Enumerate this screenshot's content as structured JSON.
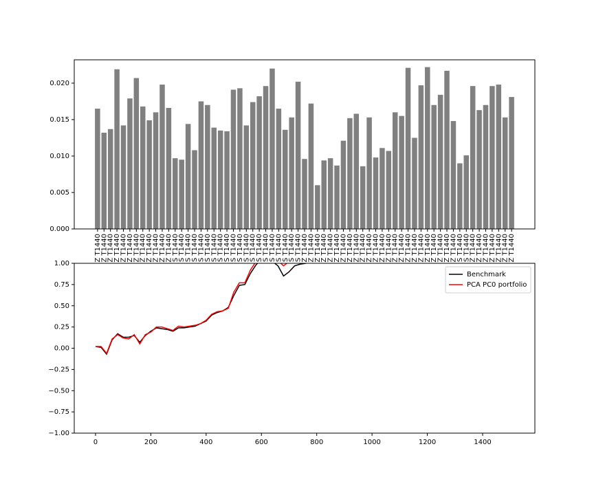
{
  "chart_data": [
    {
      "type": "bar",
      "categories": [
        "Z T1440",
        "Z T1440",
        "Z T1440",
        "Z T1440",
        "Z T1440",
        "Z T1440",
        "Z T1440",
        "Z T1440",
        "Z T1440",
        "Z T1440",
        "Z T1440",
        "Z T1440",
        "S T1440",
        "S T1440",
        "S T1440",
        "S T1440",
        "S T1440",
        "S T1440",
        "S T1440",
        "S T1440",
        "S T1440",
        "S T1440",
        "S T1440",
        "S T1440",
        "S T1440",
        "S T1440",
        "S T1440",
        "S T1440",
        "S T1440",
        "S T1440",
        "S T1440",
        "S T1440",
        "Z T1440",
        "Z T1440",
        "Z T1440",
        "Z T1440",
        "Z T1440",
        "Z T1440",
        "Z T1440",
        "Z T1440",
        "Z T1440",
        "Z T1440",
        "Z T1440",
        "Z T1440",
        "Z T1440",
        "Z T1440",
        "Z T1440",
        "Z T1440",
        "Z T1440",
        "Z T1440",
        "Z T1440",
        "Z T1440",
        "Z T1440",
        "Z T1440",
        "Z T1440",
        "Z T1440",
        "S T1440",
        "S T1440",
        "Z T1440",
        "Z T1440",
        "Z T1440",
        "Z T1440",
        "Z T1440",
        "Z T1440",
        "Z T1440"
      ],
      "values": [
        0.0165,
        0.0132,
        0.0137,
        0.0219,
        0.0142,
        0.0179,
        0.0207,
        0.0168,
        0.0149,
        0.016,
        0.0198,
        0.0166,
        0.0097,
        0.0095,
        0.0144,
        0.0108,
        0.0175,
        0.017,
        0.0139,
        0.0135,
        0.0134,
        0.0191,
        0.0193,
        0.0142,
        0.0174,
        0.0182,
        0.0196,
        0.022,
        0.0165,
        0.0136,
        0.0153,
        0.0202,
        0.0096,
        0.0172,
        0.006,
        0.0094,
        0.0097,
        0.0087,
        0.0121,
        0.0152,
        0.0158,
        0.0086,
        0.0153,
        0.0098,
        0.0111,
        0.0107,
        0.016,
        0.0155,
        0.0221,
        0.0125,
        0.0197,
        0.0222,
        0.017,
        0.0184,
        0.0217,
        0.0148,
        0.009,
        0.0101,
        0.0196,
        0.0163,
        0.017,
        0.0196,
        0.0198,
        0.0153,
        0.0181
      ],
      "color": "#808080",
      "ylim": [
        0,
        0.0232
      ],
      "yticks": [
        {
          "value": 0,
          "label": "0.000"
        },
        {
          "value": 0.005,
          "label": "0.005"
        },
        {
          "value": 0.01,
          "label": "0.010"
        },
        {
          "value": 0.015,
          "label": "0.015"
        },
        {
          "value": 0.02,
          "label": "0.020"
        }
      ]
    },
    {
      "type": "line",
      "x": [
        0,
        20,
        40,
        60,
        80,
        100,
        120,
        140,
        160,
        180,
        200,
        220,
        240,
        260,
        280,
        300,
        320,
        340,
        360,
        380,
        400,
        420,
        440,
        460,
        480,
        500,
        520,
        540,
        560,
        580,
        600,
        620,
        640,
        660,
        680,
        700,
        720,
        740,
        760,
        780
      ],
      "series": [
        {
          "name": "Benchmark",
          "color": "#000000",
          "values": [
            0.02,
            0.01,
            -0.07,
            0.1,
            0.17,
            0.13,
            0.13,
            0.15,
            0.07,
            0.15,
            0.2,
            0.24,
            0.23,
            0.22,
            0.2,
            0.24,
            0.24,
            0.25,
            0.26,
            0.29,
            0.32,
            0.39,
            0.42,
            0.44,
            0.48,
            0.62,
            0.74,
            0.75,
            0.88,
            0.98,
            1.05,
            1.08,
            1.02,
            0.97,
            0.85,
            0.9,
            0.97,
            0.99,
            1.0,
            1.02
          ]
        },
        {
          "name": "PCA PC0 portfolio",
          "color": "#ff0000",
          "values": [
            0.02,
            0.02,
            -0.06,
            0.11,
            0.16,
            0.12,
            0.11,
            0.16,
            0.05,
            0.16,
            0.19,
            0.25,
            0.25,
            0.23,
            0.21,
            0.26,
            0.25,
            0.26,
            0.27,
            0.29,
            0.33,
            0.4,
            0.43,
            0.44,
            0.47,
            0.66,
            0.77,
            0.77,
            0.92,
            1.02,
            1.08,
            1.1,
            1.05,
            1.03,
            0.97,
            1.02,
            1.05,
            1.08,
            1.1,
            1.12
          ]
        }
      ],
      "xlim": [
        -77,
        1589
      ],
      "xticks": [
        0,
        200,
        400,
        600,
        800,
        1000,
        1200,
        1400
      ],
      "ylim": [
        -1,
        1
      ],
      "yticks": [
        {
          "value": -1,
          "label": "−1.00"
        },
        {
          "value": -0.75,
          "label": "−0.75"
        },
        {
          "value": -0.5,
          "label": "−0.50"
        },
        {
          "value": -0.25,
          "label": "−0.25"
        },
        {
          "value": 0,
          "label": "0.00"
        },
        {
          "value": 0.25,
          "label": "0.25"
        },
        {
          "value": 0.5,
          "label": "0.50"
        },
        {
          "value": 0.75,
          "label": "0.75"
        },
        {
          "value": 1,
          "label": "1.00"
        }
      ],
      "legend": "upper right"
    }
  ]
}
